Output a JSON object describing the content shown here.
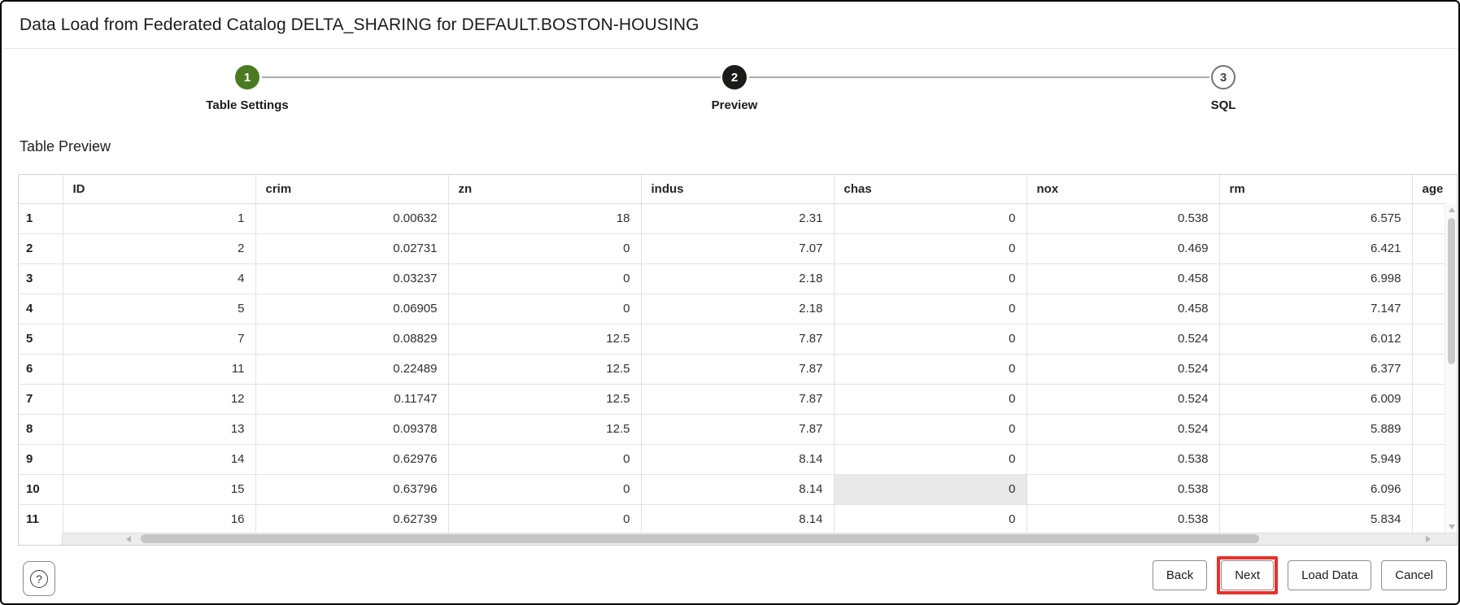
{
  "dialog": {
    "title": "Data Load from Federated Catalog DELTA_SHARING for DEFAULT.BOSTON-HOUSING"
  },
  "stepper": {
    "steps": [
      {
        "number": "1",
        "label": "Table Settings",
        "state": "complete"
      },
      {
        "number": "2",
        "label": "Preview",
        "state": "current"
      },
      {
        "number": "3",
        "label": "SQL",
        "state": "upcoming"
      }
    ]
  },
  "section": {
    "heading": "Table Preview"
  },
  "table": {
    "columns": [
      "ID",
      "crim",
      "zn",
      "indus",
      "chas",
      "nox",
      "rm",
      "age"
    ],
    "rows": [
      {
        "num": "1",
        "cells": [
          "1",
          "0.00632",
          "18",
          "2.31",
          "0",
          "0.538",
          "6.575",
          ""
        ]
      },
      {
        "num": "2",
        "cells": [
          "2",
          "0.02731",
          "0",
          "7.07",
          "0",
          "0.469",
          "6.421",
          ""
        ]
      },
      {
        "num": "3",
        "cells": [
          "4",
          "0.03237",
          "0",
          "2.18",
          "0",
          "0.458",
          "6.998",
          ""
        ]
      },
      {
        "num": "4",
        "cells": [
          "5",
          "0.06905",
          "0",
          "2.18",
          "0",
          "0.458",
          "7.147",
          ""
        ]
      },
      {
        "num": "5",
        "cells": [
          "7",
          "0.08829",
          "12.5",
          "7.87",
          "0",
          "0.524",
          "6.012",
          ""
        ]
      },
      {
        "num": "6",
        "cells": [
          "11",
          "0.22489",
          "12.5",
          "7.87",
          "0",
          "0.524",
          "6.377",
          ""
        ]
      },
      {
        "num": "7",
        "cells": [
          "12",
          "0.11747",
          "12.5",
          "7.87",
          "0",
          "0.524",
          "6.009",
          ""
        ]
      },
      {
        "num": "8",
        "cells": [
          "13",
          "0.09378",
          "12.5",
          "7.87",
          "0",
          "0.524",
          "5.889",
          ""
        ]
      },
      {
        "num": "9",
        "cells": [
          "14",
          "0.62976",
          "0",
          "8.14",
          "0",
          "0.538",
          "5.949",
          ""
        ]
      },
      {
        "num": "10",
        "cells": [
          "15",
          "0.63796",
          "0",
          "8.14",
          "0",
          "0.538",
          "6.096",
          ""
        ]
      },
      {
        "num": "11",
        "cells": [
          "16",
          "0.62739",
          "0",
          "8.14",
          "0",
          "0.538",
          "5.834",
          ""
        ]
      }
    ],
    "highlight": {
      "row_num": "10",
      "column": "chas"
    }
  },
  "footer": {
    "help_glyph": "?",
    "buttons": [
      {
        "label": "Back",
        "annotated": false
      },
      {
        "label": "Next",
        "annotated": true
      },
      {
        "label": "Load Data",
        "annotated": false
      },
      {
        "label": "Cancel",
        "annotated": false
      }
    ]
  },
  "colors": {
    "step_complete_green": "#4a7b22",
    "step_current_black": "#1c1b1a",
    "annotation_red": "#e6312c",
    "highlight_cell_gray": "#e9e9e9"
  }
}
